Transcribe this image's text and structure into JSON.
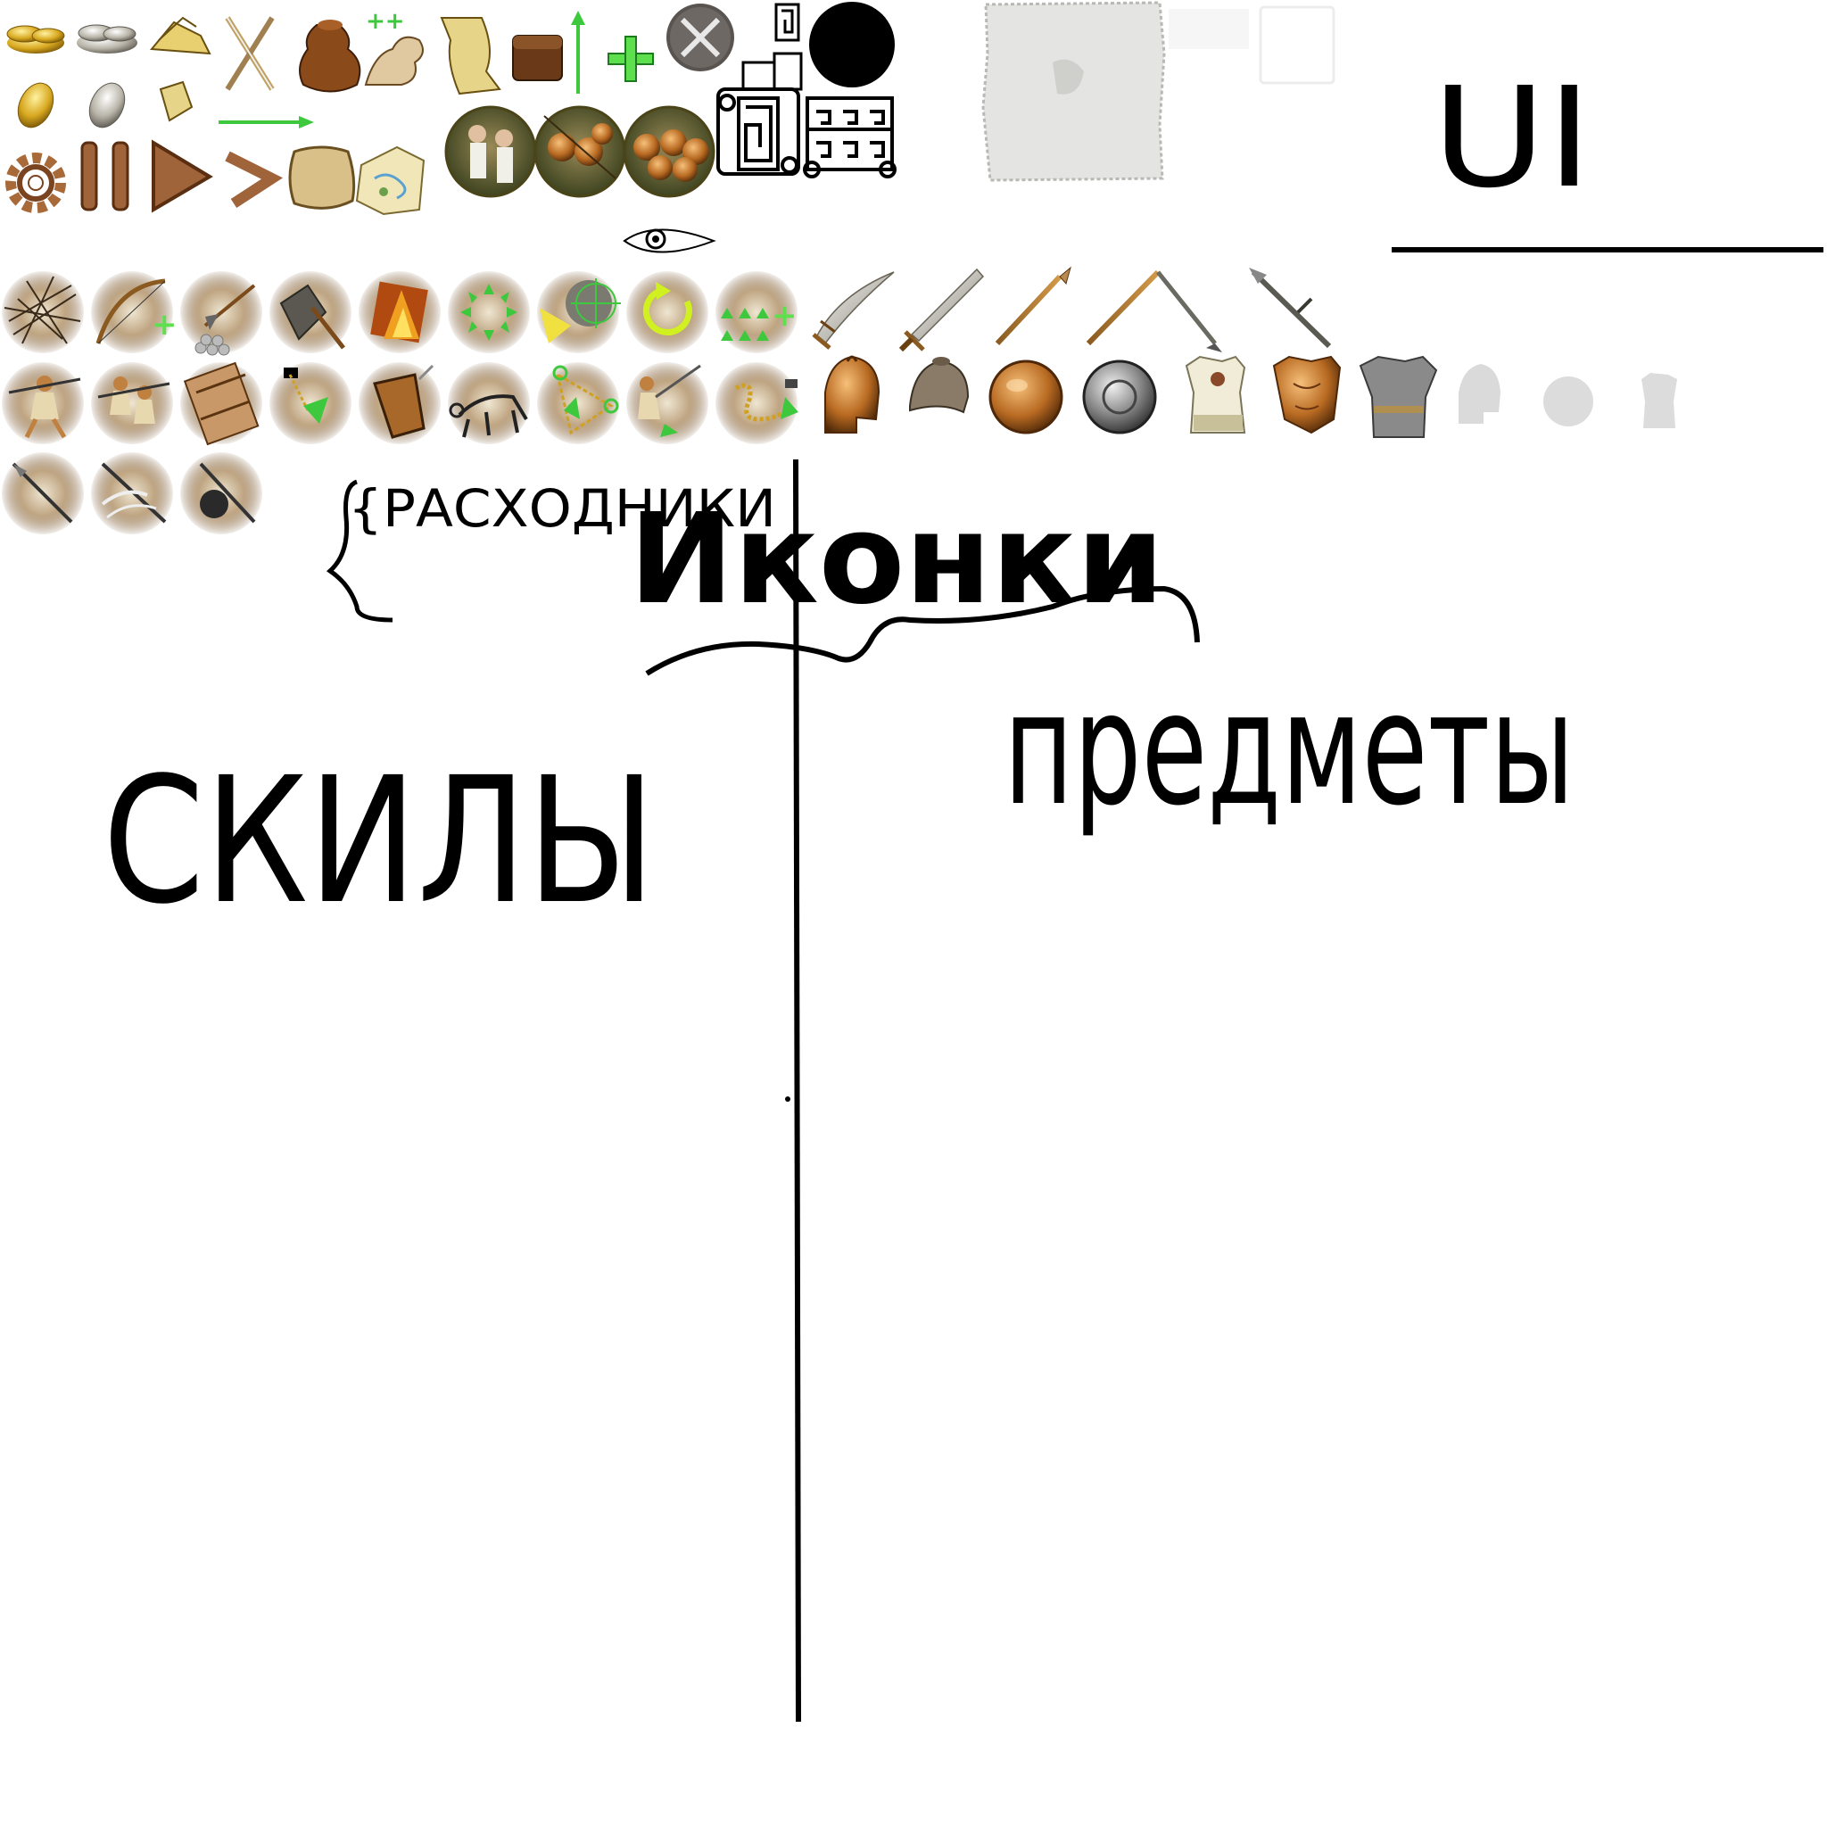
{
  "labels": {
    "ui": "UI",
    "consumables": "{РАСХОДНИКИ",
    "icons": "Иконки",
    "skills": "СКИЛЫ",
    "items": "предметы"
  },
  "icons": {
    "resources_row1": [
      "gold-coins-icon",
      "silver-coins-icon",
      "scroll-pile-icon",
      "crossed-swords-icon",
      "coin-bag-icon",
      "strength-arm-plus-icon",
      "scroll-icon",
      "treasure-chest-icon",
      "green-arrow-up-icon",
      "green-plus-icon",
      "close-round-button-icon"
    ],
    "resources_row2": [
      "gold-coin-icon",
      "silver-coin-icon",
      "small-scroll-icon",
      "green-arrow-right-icon"
    ],
    "controls_row": [
      "gear-icon",
      "pause-icon",
      "play-icon",
      "fast-forward-icon",
      "sack-icon",
      "map-icon"
    ],
    "unit_portraits": [
      "unit-group-portrait-1",
      "unit-group-portrait-2",
      "shield-wall-portrait"
    ],
    "frame_pieces": [
      "greek-key-corner",
      "black-circle",
      "greek-key-column",
      "greek-key-frame",
      "parchment-panel",
      "blank-white-panel",
      "blank-square-panel"
    ],
    "eye": "eye-icon",
    "skills_row1": [
      "volley-arrows-skill-icon",
      "bow-plus-skill-icon",
      "stone-ammo-skill-icon",
      "axe-skill-icon",
      "fire-skill-icon",
      "scatter-formation-skill-icon",
      "aim-target-skill-icon",
      "rotate-skill-icon",
      "formation-plus-skill-icon"
    ],
    "skills_row2": [
      "charge-skill-icon",
      "double-charge-skill-icon",
      "barricade-skill-icon",
      "waypoint-skill-icon",
      "shield-skill-icon",
      "crawl-skill-icon",
      "route-skill-icon",
      "throw-skill-icon",
      "snake-path-skill-icon"
    ],
    "skills_row3": [
      "spear-skill-icon",
      "wind-spear-skill-icon",
      "bomb-spear-skill-icon"
    ],
    "weapons": [
      "curved-sword-icon",
      "short-sword-icon",
      "spear-icon",
      "double-spear-icon",
      "long-dagger-icon"
    ],
    "armor": [
      "corinthian-helmet-icon",
      "cap-helmet-icon",
      "bronze-shield-icon",
      "iron-shield-icon",
      "linen-armor-icon",
      "bronze-cuirass-icon",
      "chainmail-icon",
      "helmet-placeholder-icon",
      "shield-placeholder-icon",
      "armor-placeholder-icon"
    ]
  }
}
